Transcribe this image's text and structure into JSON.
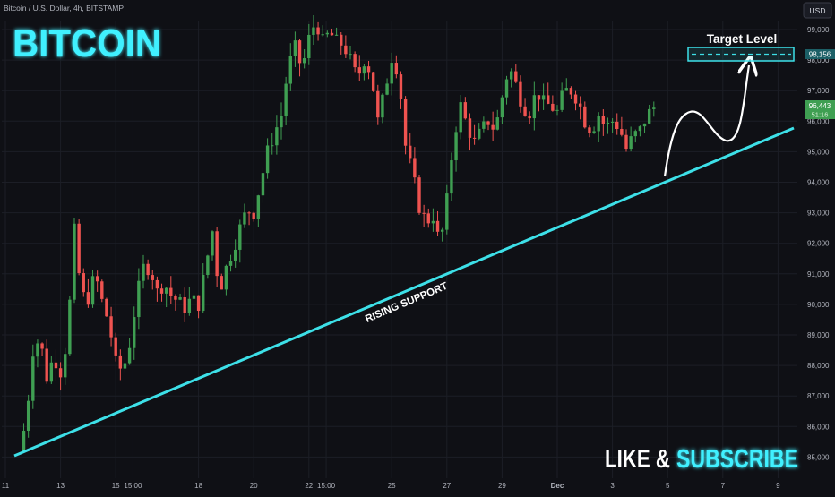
{
  "header": {
    "symbol_line": "Bitcoin / U.S. Dollar, 4h, BITSTAMP",
    "currency": "USD"
  },
  "overlays": {
    "headline": "BITCOIN",
    "support_label": "RISING SUPPORT",
    "target_label": "Target Level",
    "cta_part1": "LIKE &",
    "cta_part2": "SUBSCRIBE"
  },
  "colors": {
    "background": "#0f1015",
    "up": "#26a69a",
    "up_bar": "#3f9f52",
    "down": "#ef5350",
    "trendline": "#3de0e8",
    "neon": "#41f0ff",
    "grid": "#1c1e26",
    "axis_text": "#b2b5be",
    "price_tag": "#3f9f52"
  },
  "price_tags": {
    "current_price": "96,443",
    "countdown": "51:16",
    "target_price": "98,156"
  },
  "chart_data": {
    "type": "candlestick",
    "symbol": "Bitcoin / U.S. Dollar",
    "interval": "4h",
    "exchange": "BITSTAMP",
    "ylim": [
      84200,
      100000
    ],
    "y_ticks": [
      {
        "value": 99000,
        "label": "99,000"
      },
      {
        "value": 98000,
        "label": "98,000"
      },
      {
        "value": 97000,
        "label": "97,000"
      },
      {
        "value": 96000,
        "label": "96,000"
      },
      {
        "value": 95000,
        "label": "95,000"
      },
      {
        "value": 94000,
        "label": "94,000"
      },
      {
        "value": 93000,
        "label": "93,000"
      },
      {
        "value": 92000,
        "label": "92,000"
      },
      {
        "value": 91000,
        "label": "91,000"
      },
      {
        "value": 90000,
        "label": "90,000"
      },
      {
        "value": 89000,
        "label": "89,000"
      },
      {
        "value": 88000,
        "label": "88,000"
      },
      {
        "value": 87000,
        "label": "87,000"
      },
      {
        "value": 86000,
        "label": "86,000"
      },
      {
        "value": 85000,
        "label": "85,000"
      }
    ],
    "x_range_days": [
      0,
      28.7
    ],
    "x_ticks": [
      {
        "day": 0,
        "label": "11"
      },
      {
        "day": 2,
        "label": "13"
      },
      {
        "day": 4,
        "label": "15"
      },
      {
        "day": 4.625,
        "label": "15:00"
      },
      {
        "day": 7,
        "label": "18"
      },
      {
        "day": 9,
        "label": "20"
      },
      {
        "day": 11,
        "label": "22"
      },
      {
        "day": 11.625,
        "label": "15:00"
      },
      {
        "day": 14,
        "label": "25"
      },
      {
        "day": 16,
        "label": "27"
      },
      {
        "day": 18,
        "label": "29"
      },
      {
        "day": 20,
        "label": "Dec"
      },
      {
        "day": 22,
        "label": "3"
      },
      {
        "day": 24,
        "label": "5"
      },
      {
        "day": 26,
        "label": "7"
      },
      {
        "day": 28,
        "label": "9"
      }
    ],
    "close_path": [
      [
        0.5,
        85200
      ],
      [
        0.75,
        86200
      ],
      [
        1.0,
        88500
      ],
      [
        1.25,
        88900
      ],
      [
        1.5,
        87600
      ],
      [
        1.75,
        88300
      ],
      [
        2.0,
        87800
      ],
      [
        2.25,
        88900
      ],
      [
        2.5,
        92400
      ],
      [
        2.75,
        90300
      ],
      [
        3.0,
        90200
      ],
      [
        3.25,
        91000
      ],
      [
        3.5,
        90100
      ],
      [
        3.75,
        89400
      ],
      [
        4.0,
        88100
      ],
      [
        4.25,
        87800
      ],
      [
        4.5,
        88700
      ],
      [
        4.75,
        90200
      ],
      [
        5.0,
        91200
      ],
      [
        5.25,
        91200
      ],
      [
        5.5,
        90400
      ],
      [
        5.75,
        90700
      ],
      [
        6.0,
        90300
      ],
      [
        6.25,
        90100
      ],
      [
        6.5,
        89900
      ],
      [
        6.75,
        90200
      ],
      [
        7.0,
        90000
      ],
      [
        7.25,
        91200
      ],
      [
        7.5,
        92400
      ],
      [
        7.75,
        90400
      ],
      [
        8.0,
        91200
      ],
      [
        8.25,
        91800
      ],
      [
        8.5,
        92500
      ],
      [
        8.75,
        93100
      ],
      [
        9.0,
        93000
      ],
      [
        9.25,
        94000
      ],
      [
        9.5,
        95000
      ],
      [
        9.75,
        95600
      ],
      [
        10.0,
        96200
      ],
      [
        10.25,
        97800
      ],
      [
        10.5,
        98400
      ],
      [
        10.75,
        97700
      ],
      [
        11.0,
        98700
      ],
      [
        11.25,
        99300
      ],
      [
        11.5,
        98600
      ],
      [
        11.75,
        98900
      ],
      [
        12.0,
        98600
      ],
      [
        12.25,
        98500
      ],
      [
        12.5,
        98000
      ],
      [
        12.75,
        97400
      ],
      [
        13.0,
        98000
      ],
      [
        13.25,
        97600
      ],
      [
        13.5,
        96000
      ],
      [
        13.75,
        97000
      ],
      [
        14.0,
        98100
      ],
      [
        14.25,
        97600
      ],
      [
        14.5,
        95200
      ],
      [
        14.75,
        94300
      ],
      [
        15.0,
        93200
      ],
      [
        15.25,
        92700
      ],
      [
        15.5,
        92900
      ],
      [
        15.75,
        91900
      ],
      [
        16.0,
        93400
      ],
      [
        16.25,
        95500
      ],
      [
        16.5,
        96500
      ],
      [
        16.75,
        95800
      ],
      [
        17.0,
        95300
      ],
      [
        17.25,
        95700
      ],
      [
        17.5,
        96000
      ],
      [
        17.75,
        95700
      ],
      [
        18.0,
        96800
      ],
      [
        18.25,
        97800
      ],
      [
        18.5,
        97200
      ],
      [
        18.75,
        96500
      ],
      [
        19.0,
        96300
      ],
      [
        19.25,
        97000
      ],
      [
        19.5,
        96600
      ],
      [
        19.75,
        96500
      ],
      [
        20.0,
        96300
      ],
      [
        20.25,
        97000
      ],
      [
        20.5,
        97000
      ],
      [
        20.75,
        96700
      ],
      [
        21.0,
        96000
      ],
      [
        21.25,
        95700
      ],
      [
        21.5,
        96200
      ],
      [
        21.75,
        95800
      ],
      [
        22.0,
        96000
      ],
      [
        22.25,
        95800
      ],
      [
        22.5,
        95100
      ],
      [
        22.75,
        95500
      ],
      [
        23.0,
        95700
      ],
      [
        23.25,
        96200
      ],
      [
        23.5,
        96443
      ]
    ]
  }
}
